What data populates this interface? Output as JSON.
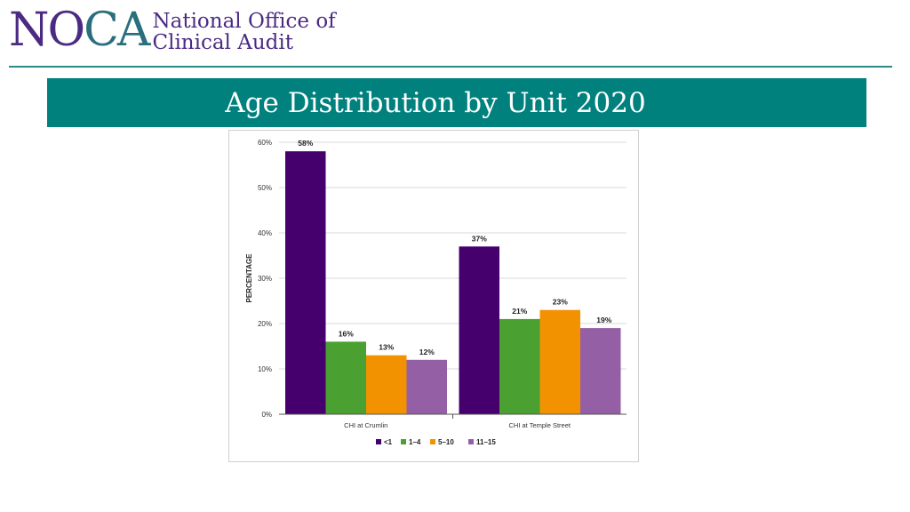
{
  "logo": {
    "mark": "NOCA",
    "line1": "National Office of",
    "line2": "Clinical Audit"
  },
  "page_title": "Age Distribution by Unit 2020",
  "colors": {
    "purple_dark": "#45006e",
    "green": "#4aa132",
    "orange": "#f29200",
    "lilac": "#955fa6",
    "teal": "#01817d",
    "brand_purple": "#4b2a83"
  },
  "chart_data": {
    "type": "bar",
    "title": "",
    "xlabel": "",
    "ylabel": "PERCENTAGE",
    "ylim": [
      0,
      60
    ],
    "yticks": [
      "0%",
      "10%",
      "20%",
      "30%",
      "40%",
      "50%",
      "60%"
    ],
    "categories": [
      "CHI at Crumlin",
      "CHI at Temple Street"
    ],
    "series": [
      {
        "name": "<1",
        "values": [
          58,
          37
        ],
        "labels": [
          "58%",
          "37%"
        ],
        "color": "#45006e"
      },
      {
        "name": "1–4",
        "values": [
          16,
          21
        ],
        "labels": [
          "16%",
          "21%"
        ],
        "color": "#4aa132"
      },
      {
        "name": "5–10",
        "values": [
          13,
          23
        ],
        "labels": [
          "13%",
          "23%"
        ],
        "color": "#f29200"
      },
      {
        "name": "11–15",
        "values": [
          12,
          19
        ],
        "labels": [
          "12%",
          "19%"
        ],
        "color": "#955fa6"
      }
    ],
    "legend_position": "bottom",
    "grid": true
  }
}
